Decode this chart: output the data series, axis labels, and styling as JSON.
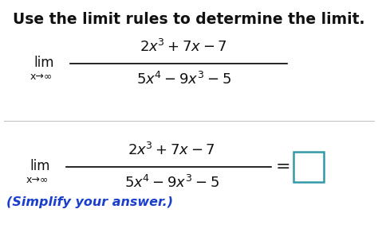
{
  "title": "Use the limit rules to determine the limit.",
  "title_fontsize": 13.5,
  "title_color": "#111111",
  "bg_color": "#ffffff",
  "lim_text": "lim",
  "sub_text": "x→∞",
  "numerator": "$2x^3 + 7x - 7$",
  "denominator": "$5x^4 - 9x^3 - 5$",
  "simplify_text": "(Simplify your answer.)",
  "simplify_color": "#1a3fcc",
  "equals_text": "=",
  "box_color": "#3399aa",
  "separator_color": "#bbbbbb",
  "math_fontsize": 13,
  "lim_fontsize": 12,
  "sub_fontsize": 9
}
